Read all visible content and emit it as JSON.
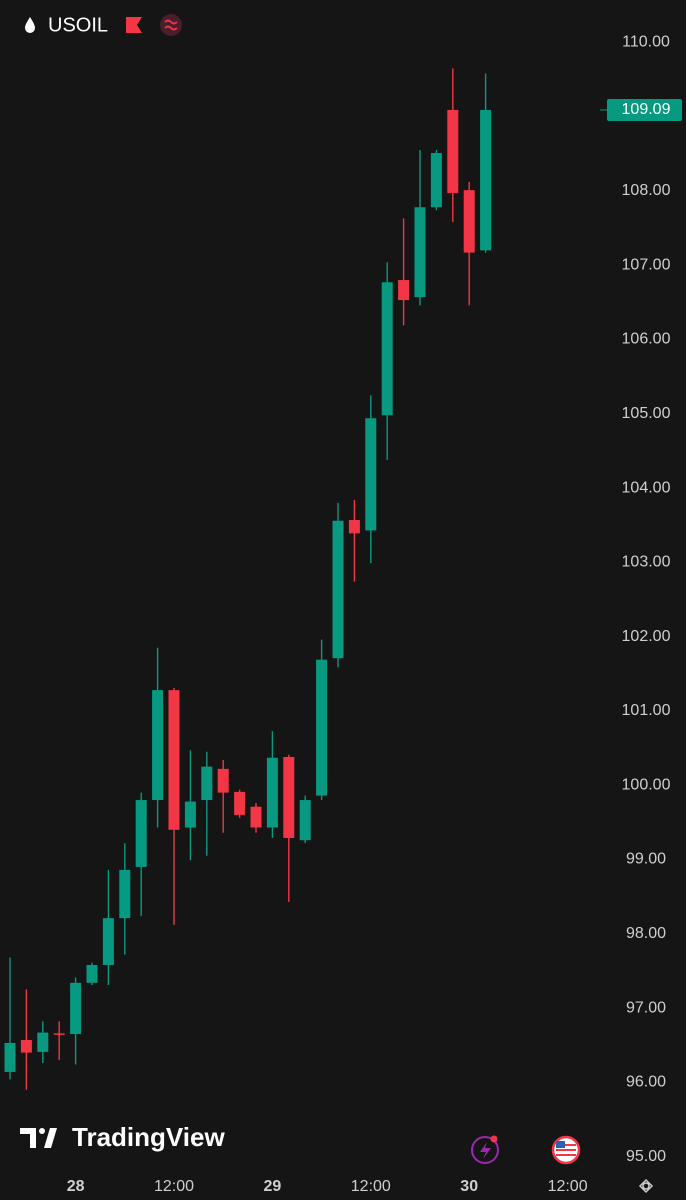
{
  "chart_data": {
    "type": "candlestick",
    "title": "USOIL",
    "watermark": "TradingView",
    "categories": [
      null,
      null,
      null,
      null,
      "28",
      null,
      null,
      null,
      null,
      null,
      "12:00",
      null,
      null,
      null,
      null,
      null,
      "29",
      null,
      null,
      null,
      null,
      null,
      "12:00",
      null,
      null,
      null,
      null,
      null,
      "30",
      null,
      null,
      null,
      null,
      null,
      "12:00",
      null
    ],
    "open": [
      96.14,
      96.57,
      96.41,
      96.66,
      96.65,
      97.34,
      97.58,
      98.21,
      98.9,
      99.8,
      101.28,
      99.43,
      99.8,
      100.22,
      99.91,
      99.71,
      99.43,
      100.38,
      99.26,
      99.86,
      101.71,
      103.57,
      103.43,
      104.98,
      106.8,
      106.57,
      107.78,
      109.09,
      108.01,
      107.2,
      null,
      null,
      null,
      null,
      null,
      null
    ],
    "high": [
      97.68,
      97.25,
      96.82,
      96.82,
      97.41,
      97.61,
      98.86,
      99.22,
      99.9,
      101.85,
      101.31,
      100.47,
      100.45,
      100.34,
      99.94,
      99.76,
      100.73,
      100.41,
      99.86,
      101.96,
      103.8,
      103.84,
      105.25,
      107.04,
      107.63,
      108.55,
      108.55,
      109.65,
      108.12,
      109.58,
      null,
      null,
      null,
      null,
      null,
      null
    ],
    "low": [
      96.04,
      95.9,
      96.26,
      96.3,
      96.24,
      97.31,
      97.31,
      97.72,
      98.24,
      99.43,
      98.12,
      98.99,
      99.05,
      99.36,
      99.56,
      99.36,
      99.29,
      98.43,
      99.22,
      99.8,
      101.59,
      102.74,
      102.99,
      104.38,
      106.19,
      106.46,
      107.74,
      107.58,
      106.46,
      107.17,
      null,
      null,
      null,
      null,
      null,
      null
    ],
    "close": [
      96.53,
      96.4,
      96.67,
      96.64,
      97.34,
      97.58,
      98.21,
      98.86,
      99.8,
      101.28,
      99.4,
      99.78,
      100.25,
      99.9,
      99.6,
      99.43,
      100.37,
      99.29,
      99.8,
      101.69,
      103.56,
      103.39,
      104.94,
      106.77,
      106.53,
      107.78,
      108.51,
      107.97,
      107.17,
      109.09,
      null,
      null,
      null,
      null,
      null,
      null
    ],
    "up_color": "#089981",
    "down_color": "#f23645",
    "last_price": 109.09,
    "ylim": [
      94.82,
      110.57
    ],
    "yticks": [
      {
        "value": 95,
        "label": "95.00"
      },
      {
        "value": 96,
        "label": "96.00"
      },
      {
        "value": 97,
        "label": "97.00"
      },
      {
        "value": 98,
        "label": "98.00"
      },
      {
        "value": 99,
        "label": "99.00"
      },
      {
        "value": 100,
        "label": "100.00"
      },
      {
        "value": 101,
        "label": "101.00"
      },
      {
        "value": 102,
        "label": "102.00"
      },
      {
        "value": 103,
        "label": "103.00"
      },
      {
        "value": 104,
        "label": "104.00"
      },
      {
        "value": 105,
        "label": "105.00"
      },
      {
        "value": 106,
        "label": "106.00"
      },
      {
        "value": 107,
        "label": "107.00"
      },
      {
        "value": 108,
        "label": "108.00"
      },
      {
        "value": 109,
        "label": "109.00"
      },
      {
        "value": 110,
        "label": "110.00"
      }
    ],
    "grid": false
  }
}
